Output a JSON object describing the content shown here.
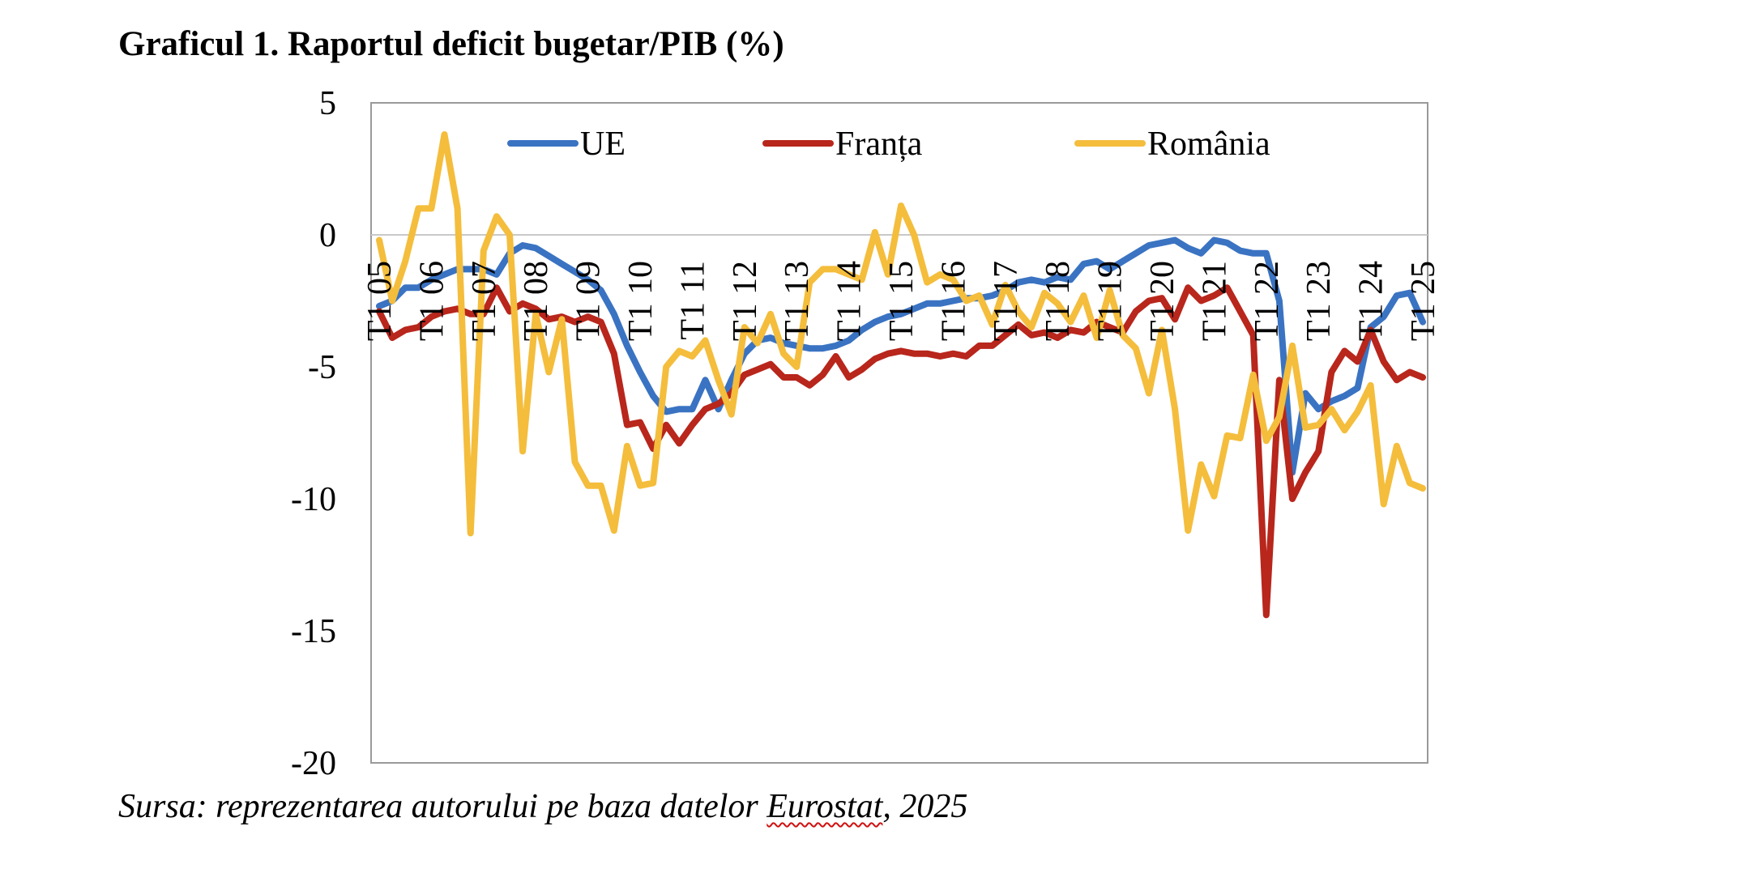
{
  "figure": {
    "title": "Graficul 1. Raportul deficit bugetar/PIB (%)",
    "source_prefix": "Sursa: reprezentarea autorului pe baza datelor ",
    "source_word": "Eurostat",
    "source_suffix": ", 2025"
  },
  "chart_data": {
    "type": "line",
    "title": "Graficul 1. Raportul deficit bugetar/PIB (%)",
    "xlabel": "",
    "ylabel": "",
    "ylim": [
      -20,
      5
    ],
    "yticks": [
      5,
      0,
      -5,
      -10,
      -15,
      -20
    ],
    "grid": "horizontal zero line only",
    "legend_position": "top",
    "x_tick_labels": [
      "T1 05",
      "T1 06",
      "T1 07",
      "T1 08",
      "T1 09",
      "T1 10",
      "T1 11",
      "T1 12",
      "T1 13",
      "T1 14",
      "T1 15",
      "T1 16",
      "T1 17",
      "T1 18",
      "T1 19",
      "T1 20",
      "T1 21",
      "T1 22",
      "T1 23",
      "T1 24",
      "T1 25"
    ],
    "quarters_count": 81,
    "series": [
      {
        "name": "UE",
        "color": "#3a73c2",
        "values": [
          -2.7,
          -2.5,
          -2.0,
          -2.0,
          -1.7,
          -1.5,
          -1.3,
          -1.3,
          -1.3,
          -1.5,
          -0.7,
          -0.4,
          -0.5,
          -0.8,
          -1.1,
          -1.4,
          -1.7,
          -2.1,
          -3.0,
          -4.2,
          -5.2,
          -6.1,
          -6.7,
          -6.6,
          -6.6,
          -5.5,
          -6.6,
          -5.5,
          -4.5,
          -4.0,
          -3.9,
          -4.1,
          -4.2,
          -4.3,
          -4.3,
          -4.2,
          -4.0,
          -3.6,
          -3.3,
          -3.1,
          -3.0,
          -2.8,
          -2.6,
          -2.6,
          -2.5,
          -2.4,
          -2.4,
          -2.3,
          -2.1,
          -1.8,
          -1.7,
          -1.8,
          -1.6,
          -1.7,
          -1.1,
          -1.0,
          -1.3,
          -1.0,
          -0.7,
          -0.4,
          -0.3,
          -0.2,
          -0.5,
          -0.7,
          -0.2,
          -0.3,
          -0.6,
          -0.7,
          -0.7,
          -2.5,
          -9.0,
          -6.0,
          -6.6,
          -6.3,
          -6.1,
          -5.8,
          -3.5,
          -3.1,
          -2.3,
          -2.2,
          -3.3
        ]
      },
      {
        "name": "Franța",
        "color": "#b8261c",
        "values": [
          -2.9,
          -3.9,
          -3.6,
          -3.5,
          -3.1,
          -2.9,
          -2.8,
          -3.0,
          -3.0,
          -2.0,
          -2.9,
          -2.6,
          -2.8,
          -3.2,
          -3.1,
          -3.3,
          -3.1,
          -3.3,
          -4.5,
          -7.2,
          -7.1,
          -8.1,
          -7.2,
          -7.9,
          -7.2,
          -6.6,
          -6.4,
          -6.0,
          -5.3,
          -5.1,
          -4.9,
          -5.4,
          -5.4,
          -5.7,
          -5.3,
          -4.6,
          -5.4,
          -5.1,
          -4.7,
          -4.5,
          -4.4,
          -4.5,
          -4.5,
          -4.6,
          -4.5,
          -4.6,
          -4.2,
          -4.2,
          -3.8,
          -3.4,
          -3.8,
          -3.7,
          -3.9,
          -3.6,
          -3.7,
          -3.3,
          -3.5,
          -3.7,
          -2.9,
          -2.5,
          -2.4,
          -3.2,
          -2.0,
          -2.5,
          -2.3,
          -2.0,
          -2.9,
          -3.8,
          -14.4,
          -5.5,
          -10.0,
          -9.0,
          -8.2,
          -5.2,
          -4.4,
          -4.8,
          -3.6,
          -4.8,
          -5.5,
          -5.2,
          -5.4
        ]
      },
      {
        "name": "România",
        "color": "#f4bd3c",
        "values": [
          -0.2,
          -2.5,
          -1.0,
          1.0,
          1.0,
          3.8,
          1.0,
          -11.3,
          -0.6,
          0.7,
          0.0,
          -8.2,
          -3.0,
          -5.2,
          -3.2,
          -8.6,
          -9.5,
          -9.5,
          -11.2,
          -8.0,
          -9.5,
          -9.4,
          -5.0,
          -4.4,
          -4.6,
          -4.0,
          -5.5,
          -6.8,
          -3.5,
          -4.1,
          -3.0,
          -4.5,
          -5.0,
          -1.8,
          -1.3,
          -1.3,
          -1.5,
          -1.7,
          0.1,
          -1.5,
          1.1,
          0.0,
          -1.8,
          -1.5,
          -1.7,
          -2.5,
          -2.3,
          -3.4,
          -1.9,
          -2.9,
          -3.5,
          -2.2,
          -2.6,
          -3.3,
          -2.3,
          -3.9,
          -2.1,
          -3.8,
          -4.3,
          -6.0,
          -3.6,
          -6.6,
          -11.2,
          -8.7,
          -9.9,
          -7.6,
          -7.7,
          -5.3,
          -7.8,
          -6.9,
          -4.2,
          -7.3,
          -7.2,
          -6.6,
          -7.4,
          -6.7,
          -5.7,
          -10.2,
          -8.0,
          -9.4,
          -9.6
        ]
      }
    ]
  }
}
